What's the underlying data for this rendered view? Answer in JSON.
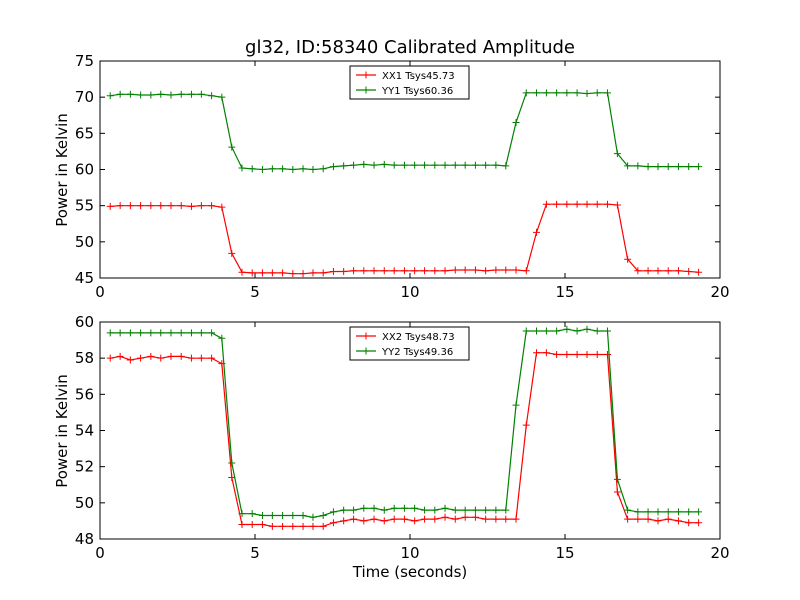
{
  "chart_data": [
    {
      "type": "line",
      "title": "gl32, ID:58340 Calibrated Amplitude",
      "xlabel": "",
      "ylabel": "Power in Kelvin",
      "xlim": [
        0,
        20
      ],
      "ylim": [
        45,
        75
      ],
      "xticks": [
        "0",
        "5",
        "10",
        "15",
        "20"
      ],
      "yticks": [
        "45",
        "50",
        "55",
        "60",
        "65",
        "70",
        "75"
      ],
      "legend_position": "top-center",
      "x": [
        0.33,
        0.65,
        0.98,
        1.31,
        1.64,
        1.96,
        2.29,
        2.62,
        2.95,
        3.27,
        3.6,
        3.93,
        4.25,
        4.58,
        4.91,
        5.24,
        5.56,
        5.89,
        6.22,
        6.55,
        6.87,
        7.2,
        7.53,
        7.86,
        8.18,
        8.51,
        8.84,
        9.17,
        9.49,
        9.82,
        10.15,
        10.47,
        10.8,
        11.13,
        11.46,
        11.78,
        12.11,
        12.44,
        12.77,
        13.09,
        13.42,
        13.75,
        14.08,
        14.4,
        14.73,
        15.06,
        15.39,
        15.71,
        16.04,
        16.37,
        16.69,
        17.02,
        17.35,
        17.68,
        18.0,
        18.33,
        18.66,
        18.99,
        19.31
      ],
      "series": [
        {
          "name": "XX1 Tsys45.73",
          "color": "#ff0000",
          "values": [
            54.9,
            55.0,
            55.0,
            55.0,
            55.0,
            55.0,
            55.0,
            55.0,
            54.9,
            55.0,
            55.0,
            54.8,
            48.4,
            45.8,
            45.7,
            45.7,
            45.7,
            45.7,
            45.6,
            45.6,
            45.7,
            45.7,
            45.9,
            45.9,
            46.0,
            46.0,
            46.0,
            46.0,
            46.0,
            46.0,
            46.0,
            46.0,
            46.0,
            46.0,
            46.1,
            46.1,
            46.1,
            46.0,
            46.1,
            46.1,
            46.1,
            46.0,
            51.3,
            55.2,
            55.2,
            55.2,
            55.2,
            55.2,
            55.2,
            55.2,
            55.1,
            47.6,
            46.0,
            46.0,
            46.0,
            46.0,
            46.0,
            45.9,
            45.8
          ]
        },
        {
          "name": "YY1 Tsys60.36",
          "color": "#008000",
          "values": [
            70.2,
            70.4,
            70.4,
            70.3,
            70.3,
            70.4,
            70.3,
            70.4,
            70.4,
            70.4,
            70.2,
            70.0,
            63.1,
            60.2,
            60.1,
            60.0,
            60.1,
            60.1,
            60.0,
            60.1,
            60.0,
            60.1,
            60.4,
            60.5,
            60.6,
            60.7,
            60.6,
            60.7,
            60.6,
            60.6,
            60.6,
            60.6,
            60.6,
            60.6,
            60.6,
            60.6,
            60.6,
            60.6,
            60.6,
            60.5,
            66.5,
            70.6,
            70.6,
            70.6,
            70.6,
            70.6,
            70.6,
            70.5,
            70.6,
            70.6,
            62.2,
            60.5,
            60.5,
            60.4,
            60.4,
            60.4,
            60.4,
            60.4,
            60.4
          ]
        }
      ]
    },
    {
      "type": "line",
      "title": "",
      "xlabel": "Time (seconds)",
      "ylabel": "Power in Kelvin",
      "xlim": [
        0,
        20
      ],
      "ylim": [
        48,
        60
      ],
      "xticks": [
        "0",
        "5",
        "10",
        "15",
        "20"
      ],
      "yticks": [
        "48",
        "50",
        "52",
        "54",
        "56",
        "58",
        "60"
      ],
      "legend_position": "top-center",
      "x": [
        0.33,
        0.65,
        0.98,
        1.31,
        1.64,
        1.96,
        2.29,
        2.62,
        2.95,
        3.27,
        3.6,
        3.93,
        4.25,
        4.58,
        4.91,
        5.24,
        5.56,
        5.89,
        6.22,
        6.55,
        6.87,
        7.2,
        7.53,
        7.86,
        8.18,
        8.51,
        8.84,
        9.17,
        9.49,
        9.82,
        10.15,
        10.47,
        10.8,
        11.13,
        11.46,
        11.78,
        12.11,
        12.44,
        12.77,
        13.09,
        13.42,
        13.75,
        14.08,
        14.4,
        14.73,
        15.06,
        15.39,
        15.71,
        16.04,
        16.37,
        16.69,
        17.02,
        17.35,
        17.68,
        18.0,
        18.33,
        18.66,
        18.99,
        19.31
      ],
      "series": [
        {
          "name": "XX2 Tsys48.73",
          "color": "#ff0000",
          "values": [
            58.0,
            58.1,
            57.9,
            58.0,
            58.1,
            58.0,
            58.1,
            58.1,
            58.0,
            58.0,
            58.0,
            57.7,
            51.4,
            48.8,
            48.8,
            48.8,
            48.7,
            48.7,
            48.7,
            48.7,
            48.7,
            48.7,
            48.9,
            49.0,
            49.1,
            49.0,
            49.1,
            49.0,
            49.1,
            49.1,
            49.0,
            49.1,
            49.1,
            49.2,
            49.1,
            49.2,
            49.2,
            49.1,
            49.1,
            49.1,
            49.1,
            54.3,
            58.3,
            58.3,
            58.2,
            58.2,
            58.2,
            58.2,
            58.2,
            58.2,
            50.6,
            49.1,
            49.1,
            49.1,
            49.0,
            49.1,
            49.0,
            48.9,
            48.9
          ]
        },
        {
          "name": "YY2 Tsys49.36",
          "color": "#008000",
          "values": [
            59.4,
            59.4,
            59.4,
            59.4,
            59.4,
            59.4,
            59.4,
            59.4,
            59.4,
            59.4,
            59.4,
            59.1,
            52.2,
            49.4,
            49.4,
            49.3,
            49.3,
            49.3,
            49.3,
            49.3,
            49.2,
            49.3,
            49.5,
            49.6,
            49.6,
            49.7,
            49.7,
            49.6,
            49.7,
            49.7,
            49.7,
            49.6,
            49.6,
            49.7,
            49.6,
            49.6,
            49.6,
            49.6,
            49.6,
            49.6,
            55.4,
            59.5,
            59.5,
            59.5,
            59.5,
            59.6,
            59.5,
            59.6,
            59.5,
            59.5,
            51.3,
            49.6,
            49.5,
            49.5,
            49.5,
            49.5,
            49.5,
            49.5,
            49.5
          ]
        }
      ]
    }
  ]
}
